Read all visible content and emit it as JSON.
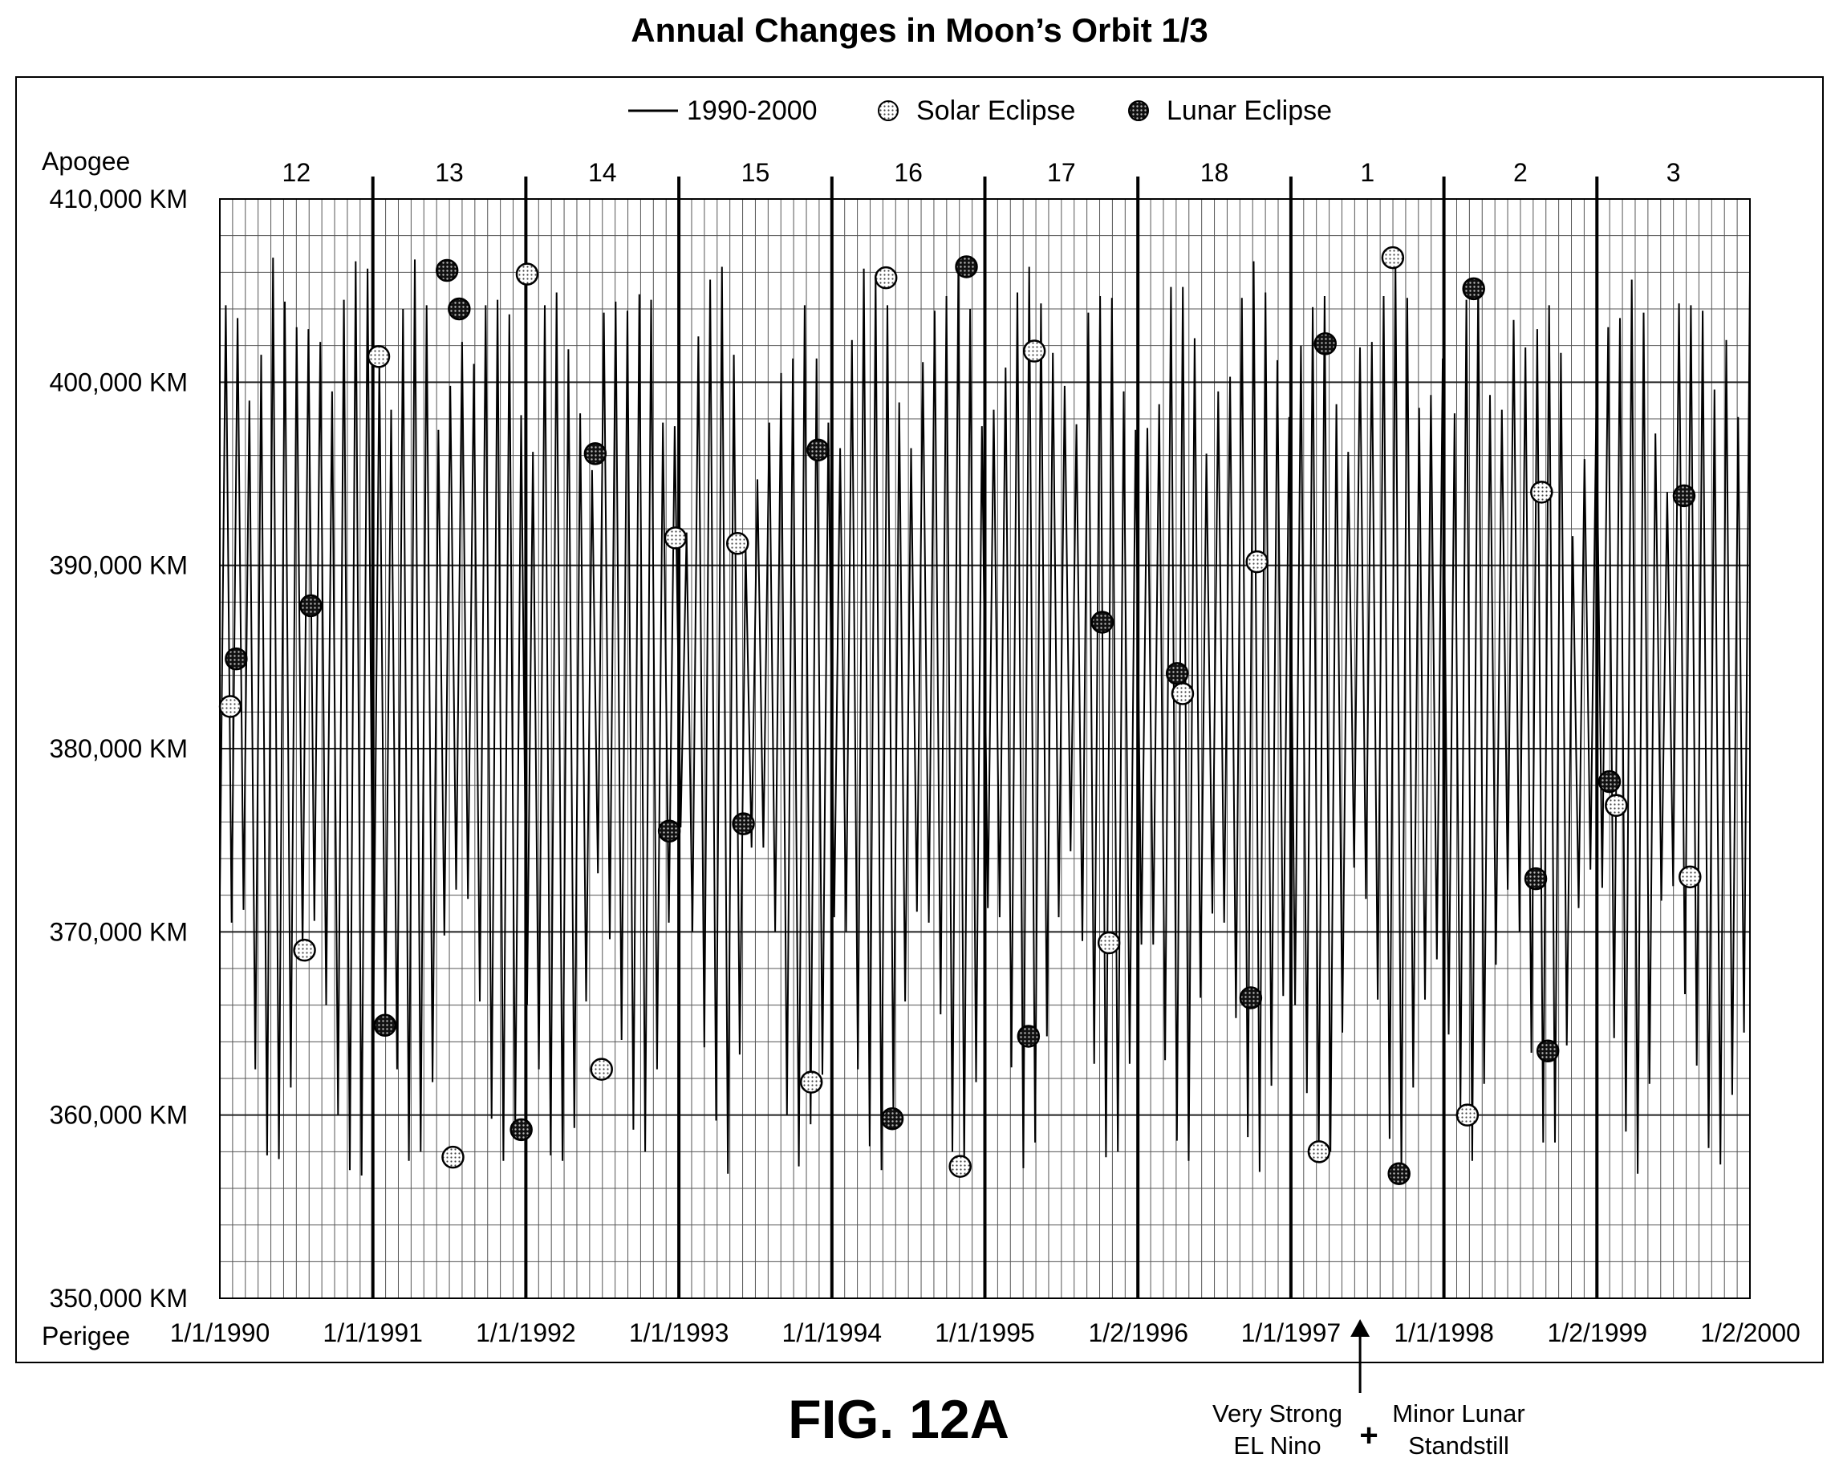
{
  "chart_data": {
    "type": "line",
    "title": "Annual Changes in Moon’s Orbit 1/3",
    "ylim": [
      350000,
      410000
    ],
    "xlim": [
      "1/1/1990",
      "1/2/2000"
    ],
    "yticks": [
      {
        "value": 410000,
        "label": "410,000 KM"
      },
      {
        "value": 400000,
        "label": "400,000 KM"
      },
      {
        "value": 390000,
        "label": "390,000 KM"
      },
      {
        "value": 380000,
        "label": "380,000 KM"
      },
      {
        "value": 370000,
        "label": "370,000 KM"
      },
      {
        "value": 360000,
        "label": "360,000 KM"
      },
      {
        "value": 350000,
        "label": "350,000 KM"
      }
    ],
    "y_top_label": "Apogee",
    "y_bottom_label": "Perigee",
    "xticks": [
      "1/1/1990",
      "1/1/1991",
      "1/1/1992",
      "1/1/1993",
      "1/1/1994",
      "1/1/1995",
      "1/2/1996",
      "1/1/1997",
      "1/1/1998",
      "1/2/1999",
      "1/2/2000"
    ],
    "cycle_labels": [
      "12",
      "13",
      "14",
      "15",
      "16",
      "17",
      "18",
      "1",
      "2",
      "3"
    ],
    "grid": true,
    "legend": {
      "placement": "top-center",
      "items": [
        {
          "label": "1990-2000",
          "marker": "line"
        },
        {
          "label": "Solar Eclipse",
          "marker": "light-dotted-circle"
        },
        {
          "label": "Lunar Eclipse",
          "marker": "dark-dotted-circle"
        }
      ]
    },
    "series": [
      {
        "name": "1990-2000",
        "type": "line",
        "color": "#000000",
        "points_per_year": 26,
        "values": [
          372000,
          404200,
          370500,
          403500,
          371200,
          399000,
          362500,
          401500,
          357800,
          406800,
          357600,
          404400,
          361500,
          403000,
          369000,
          402900,
          370600,
          402200,
          366000,
          399500,
          360000,
          404500,
          357000,
          406600,
          356700,
          406200,
          365500,
          401300,
          364700,
          398500,
          362500,
          404000,
          357500,
          406700,
          358000,
          404200,
          361800,
          397400,
          369800,
          399800,
          372300,
          402200,
          371800,
          401000,
          366200,
          404200,
          359800,
          404500,
          357500,
          403700,
          359000,
          398200,
          366000,
          396200,
          362500,
          404200,
          357800,
          404900,
          357500,
          401800,
          359300,
          398300,
          366200,
          395200,
          373200,
          403800,
          369600,
          404400,
          364100,
          403900,
          359200,
          404800,
          358000,
          404500,
          362500,
          397800,
          370500,
          397600,
          375700,
          391800,
          370000,
          402500,
          363700,
          405600,
          359700,
          406300,
          356800,
          401500,
          363300,
          391000,
          374600,
          394700,
          374600,
          397800,
          370000,
          400500,
          360000,
          401300,
          357200,
          404200,
          359500,
          401300,
          362200,
          397800,
          370800,
          396400,
          370000,
          402300,
          362500,
          406200,
          358300,
          405800,
          357000,
          404200,
          360200,
          398900,
          366200,
          396400,
          371100,
          401100,
          370500,
          403900,
          365500,
          404700,
          358000,
          406300,
          357200,
          404000,
          361800,
          397600,
          371300,
          398500,
          370800,
          400800,
          362600,
          404900,
          357100,
          406300,
          358500,
          404300,
          364300,
          401600,
          370800,
          399800,
          374400,
          397700,
          369500,
          403800,
          362800,
          404700,
          357700,
          404600,
          358000,
          399500,
          362800,
          397400,
          369300,
          397500,
          369300,
          398800,
          363000,
          405200,
          358600,
          405200,
          357500,
          402400,
          366400,
          396100,
          371000,
          399500,
          370500,
          400300,
          365300,
          404600,
          358800,
          406600,
          356900,
          404900,
          361600,
          401200,
          366500,
          398100,
          366000,
          402000,
          361200,
          404100,
          357400,
          404700,
          358000,
          398800,
          364500,
          396200,
          373500,
          401900,
          371800,
          402200,
          366300,
          404700,
          358700,
          406700,
          356900,
          404600,
          361500,
          398600,
          366300,
          399300,
          368500,
          401300,
          364400,
          398300,
          360300,
          404500,
          357500,
          405500,
          361700,
          399300,
          368200,
          398500,
          372300,
          403400,
          370000,
          401900,
          363400,
          402900,
          358500,
          404200,
          358500,
          401600,
          363800,
          391600,
          371300,
          395800,
          373400,
          399000,
          372400,
          403000,
          364200,
          403500,
          359100,
          405600,
          356800,
          403800,
          361700,
          397200,
          371700,
          394000,
          372500,
          404300,
          366600,
          404200,
          362700,
          403900,
          358200,
          399600,
          357300,
          402300,
          361100,
          398100,
          364500,
          406000
        ]
      },
      {
        "name": "Solar Eclipse",
        "type": "scatter",
        "color": "#dddddd",
        "x": [
          "1990-01-26",
          "1990-07-22",
          "1991-01-15",
          "1991-07-11",
          "1992-01-04",
          "1992-06-30",
          "1992-12-24",
          "1993-05-21",
          "1993-11-13",
          "1994-05-10",
          "1994-11-03",
          "1995-04-29",
          "1995-10-24",
          "1996-04-17",
          "1996-10-12",
          "1997-03-09",
          "1997-09-01",
          "1998-02-26",
          "1998-08-22",
          "1999-02-16",
          "1999-08-11"
        ],
        "y": [
          382300,
          369000,
          401400,
          357700,
          405900,
          362500,
          391500,
          391200,
          361800,
          405700,
          357200,
          401700,
          369400,
          383000,
          390200,
          358000,
          406800,
          360000,
          394000,
          376900,
          373000
        ]
      },
      {
        "name": "Lunar Eclipse",
        "type": "scatter",
        "color": "#333333",
        "x": [
          "1990-02-09",
          "1990-08-06",
          "1991-01-30",
          "1991-06-27",
          "1991-07-26",
          "1991-12-21",
          "1992-06-15",
          "1992-12-09",
          "1993-06-04",
          "1993-11-29",
          "1994-05-25",
          "1994-11-18",
          "1995-04-15",
          "1995-10-08",
          "1996-04-04",
          "1996-09-27",
          "1997-03-24",
          "1997-09-16",
          "1998-03-13",
          "1998-08-08",
          "1998-09-06",
          "1999-01-31",
          "1999-07-28"
        ],
        "y": [
          384900,
          387800,
          364900,
          406100,
          404000,
          359200,
          396100,
          375500,
          375900,
          396300,
          359800,
          406300,
          364300,
          386900,
          384100,
          366400,
          402100,
          356800,
          405100,
          372900,
          363500,
          378200,
          393800
        ]
      }
    ],
    "annotations": {
      "figure_label": "FIG. 12A",
      "arrow_date": "1997-06-15",
      "note_left_1": "Very Strong",
      "note_left_2": "EL Nino",
      "note_plus": "+",
      "note_right_1": "Minor Lunar",
      "note_right_2": "Standstill"
    }
  }
}
